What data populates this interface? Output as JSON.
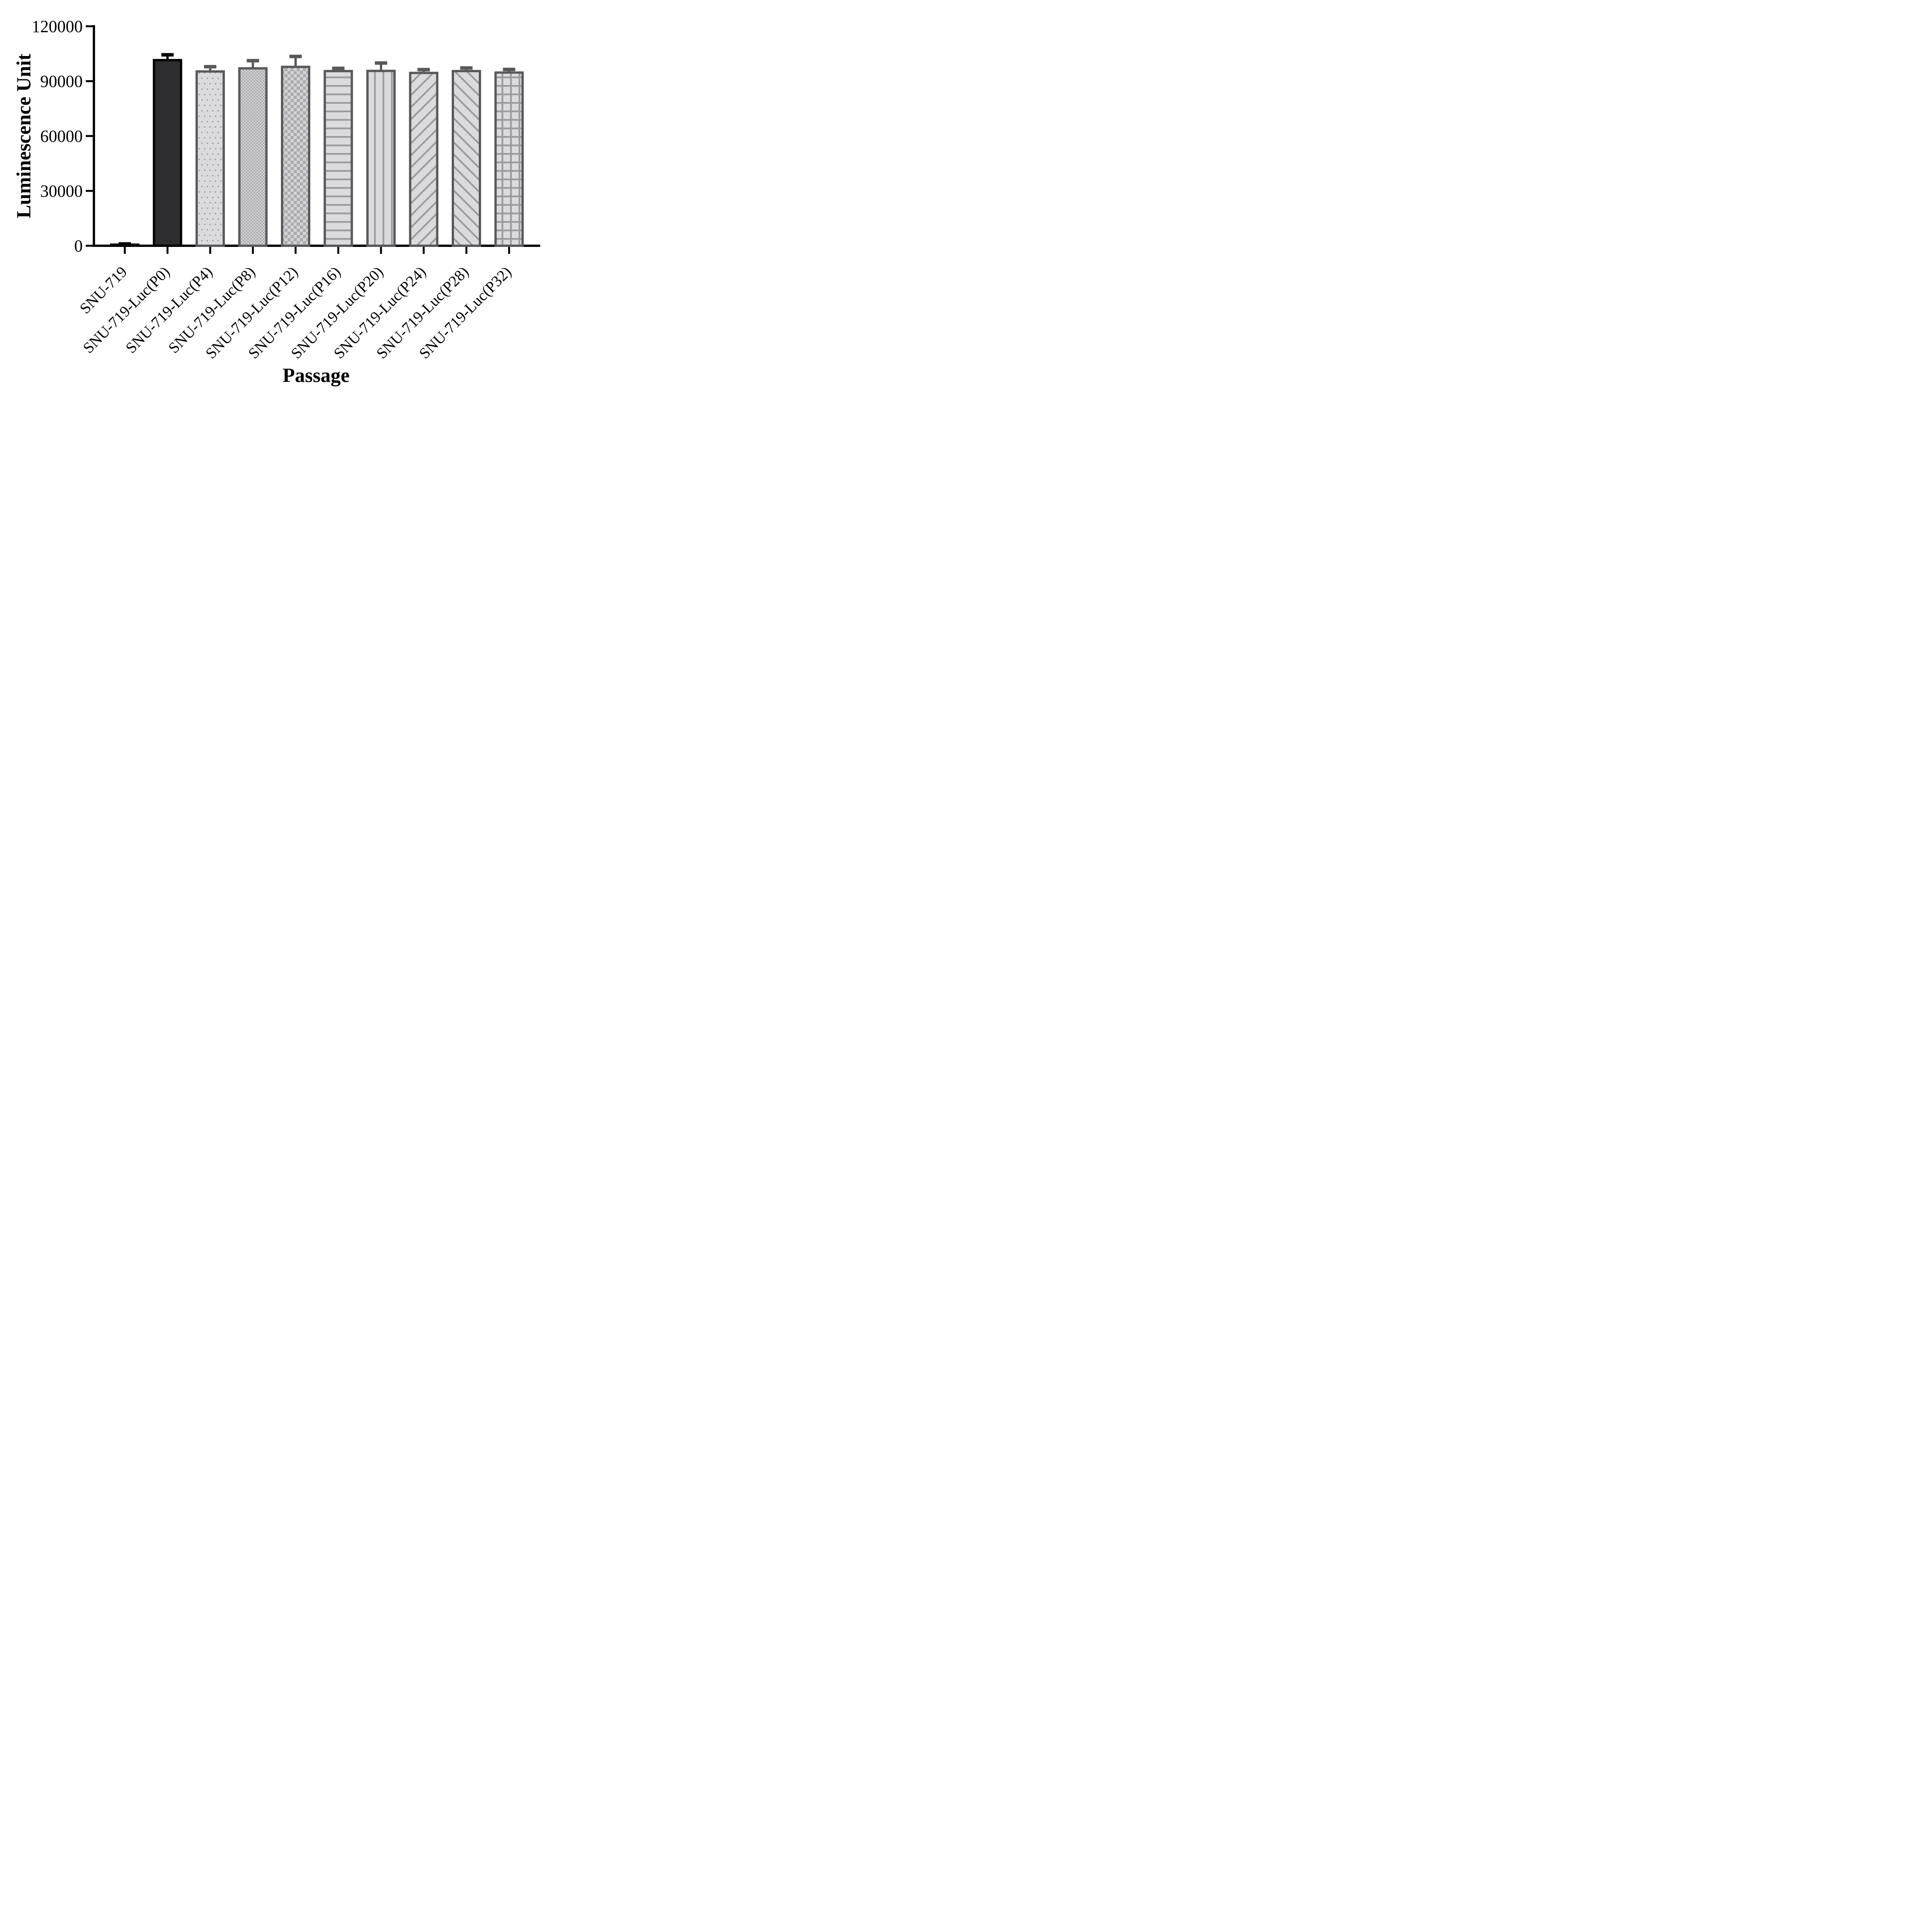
{
  "figure": {
    "y_axis_title": "Luminescence Unit",
    "x_axis_title": "Passage"
  },
  "chart_data": {
    "type": "bar",
    "title": "",
    "xlabel": "Passage",
    "ylabel": "Luminescence Unit",
    "categories": [
      "SNU-719",
      "SNU-719-Luc(P0)",
      "SNU-719-Luc(P4)",
      "SNU-719-Luc(P8)",
      "SNU-719-Luc(P12)",
      "SNU-719-Luc(P16)",
      "SNU-719-Luc(P20)",
      "SNU-719-Luc(P24)",
      "SNU-719-Luc(P28)",
      "SNU-719-Luc(P32)"
    ],
    "values": [
      600,
      101500,
      95300,
      97000,
      97800,
      95500,
      95600,
      94500,
      95500,
      94700
    ],
    "errors_upper": [
      400,
      2900,
      2600,
      4200,
      5700,
      1500,
      4300,
      1800,
      1700,
      1700
    ],
    "error_bars": "upper only, capped",
    "ylim": [
      0,
      120000
    ],
    "yticks": [
      0,
      30000,
      60000,
      90000,
      120000
    ],
    "grid": false,
    "legend": "none",
    "bar_patterns": [
      "solid-black",
      "solid-dark",
      "dots",
      "checker-fine",
      "checker-coarse",
      "horizontal-lines",
      "vertical-lines",
      "diagonal-up",
      "diagonal-down",
      "grid-crosshatch"
    ],
    "colors": {
      "bar1_fill": "#000000",
      "bar2_fill": "#2d2d2f",
      "border_black": "#000000",
      "border_gray": "#59595b",
      "pattern_foreground": "#9b9b9f",
      "pattern_background": "#dbdbdd",
      "checker_dark": "#ababaf",
      "checker_light": "#d4d4d6",
      "axis": "#000000"
    }
  }
}
